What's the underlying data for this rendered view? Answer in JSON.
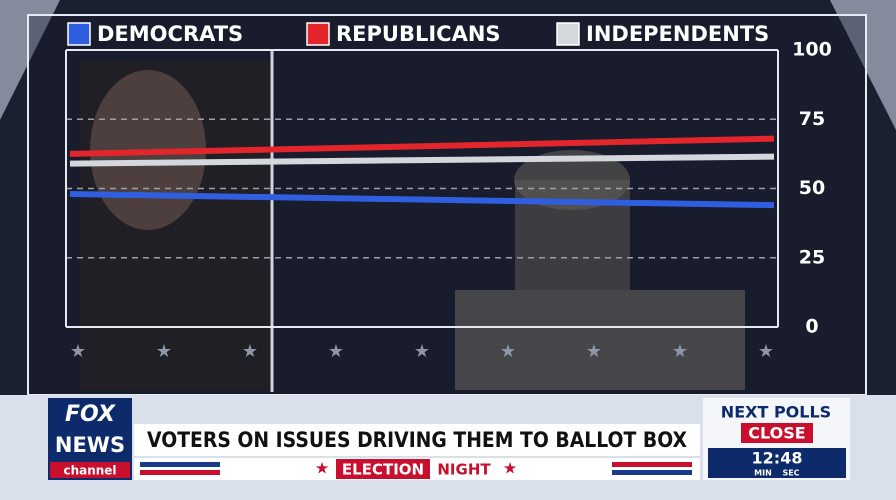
{
  "chart_data": {
    "type": "line",
    "categories": [
      null,
      null
    ],
    "series": [
      {
        "name": "DEMOCRATS",
        "color": "#2f5fe0",
        "values": [
          48,
          44
        ]
      },
      {
        "name": "REPUBLICANS",
        "color": "#e3262b",
        "values": [
          62.5,
          68
        ]
      },
      {
        "name": "INDEPENDENTS",
        "color": "#d4d8dc",
        "values": [
          59,
          61.5
        ]
      }
    ],
    "ylim": [
      0,
      100
    ],
    "yticks": [
      0,
      25,
      50,
      75,
      100
    ],
    "grid": true,
    "legend": "top"
  },
  "banner": {
    "logo": {
      "line1": "FOX",
      "line2": "NEWS",
      "line3": "channel"
    },
    "headline": "VOTERS ON ISSUES DRIVING THEM TO BALLOT BOX",
    "show": {
      "word1": "ELECTION",
      "word2": "NIGHT"
    },
    "countdown": {
      "line1": "NEXT POLLS",
      "line2": "CLOSE",
      "time": "12:48",
      "unit1": "MIN",
      "unit2": "SEC"
    }
  }
}
